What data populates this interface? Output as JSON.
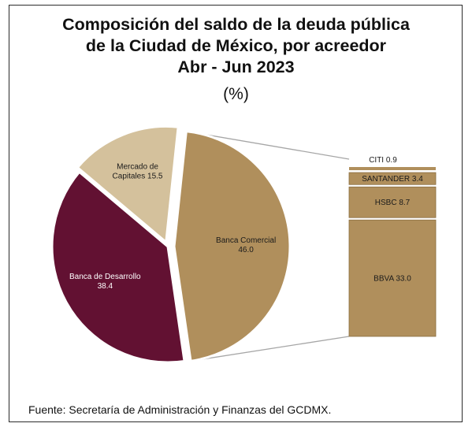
{
  "chart_data": {
    "type": "pie",
    "title_lines": [
      "Composición del saldo de la deuda pública",
      "de la Ciudad de México, por acreedor",
      "Abr - Jun 2023"
    ],
    "unit_label": "(%)",
    "pie": {
      "slices": [
        {
          "label_lines": [
            "Banca Comercial",
            "46.0"
          ],
          "value": 46.0,
          "color": "#b08f5c",
          "text_color": "#1a1a1a"
        },
        {
          "label_lines": [
            "Banca de Desarrollo",
            "38.4"
          ],
          "value": 38.4,
          "color": "#621132",
          "text_color": "#ffffff"
        },
        {
          "label_lines": [
            "Mercado de",
            "Capitales 15.5"
          ],
          "value": 15.5,
          "color": "#d4c19c",
          "text_color": "#1a1a1a"
        }
      ]
    },
    "breakdown_of": "Banca Comercial",
    "bar": {
      "segments": [
        {
          "label": "CITI 0.9",
          "value": 0.9,
          "color": "#b08f5c"
        },
        {
          "label": "SANTANDER 3.4",
          "value": 3.4,
          "color": "#b08f5c"
        },
        {
          "label": "HSBC  8.7",
          "value": 8.7,
          "color": "#b08f5c"
        },
        {
          "label": "BBVA 33.0",
          "value": 33.0,
          "color": "#b08f5c"
        }
      ]
    }
  },
  "source": "Fuente: Secretaría de Administración y Finanzas del GCDMX."
}
